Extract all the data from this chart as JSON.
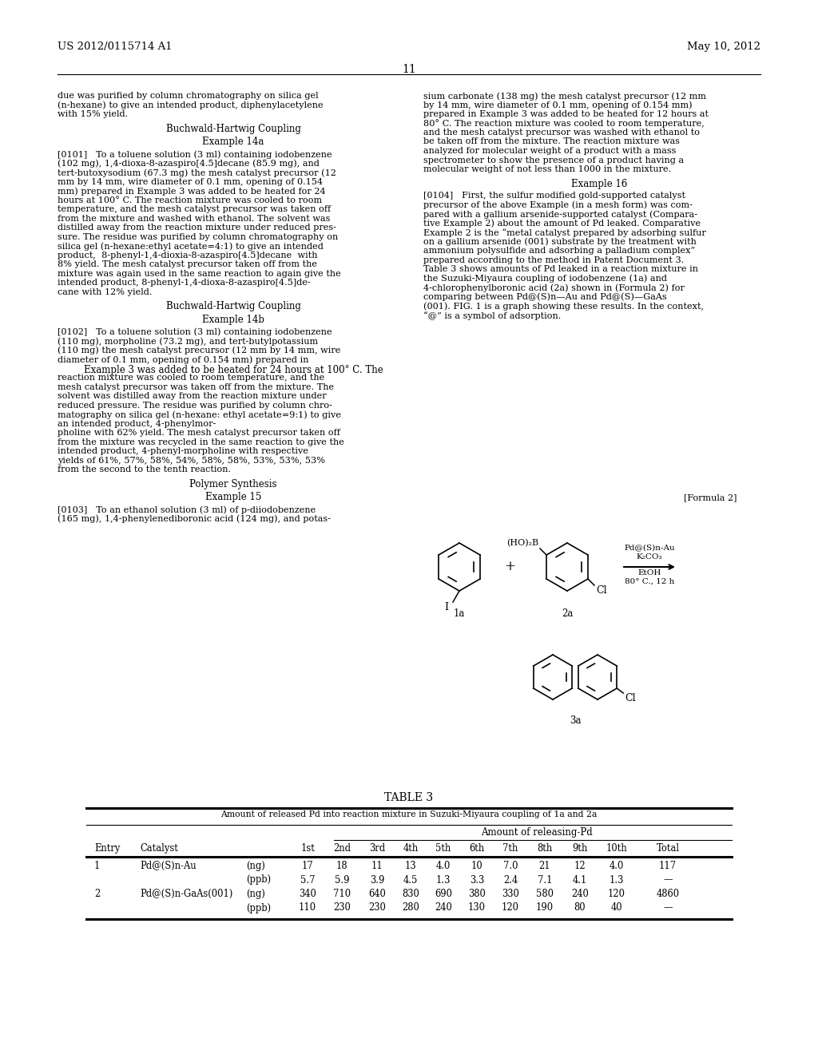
{
  "page_header_left": "US 2012/0115714 A1",
  "page_header_right": "May 10, 2012",
  "page_number": "11",
  "background_color": "#ffffff",
  "text_color": "#000000",
  "left_column_text": [
    "due was purified by column chromatography on silica gel",
    "(n-hexane) to give an intended product, diphenylacetylene",
    "with 15% yield.",
    "",
    "Buchwald-Hartwig Coupling",
    "",
    "Example 14a",
    "",
    "[0101]   To a toluene solution (3 ml) containing iodobenzene",
    "(102 mg), 1,4-dioxa-8-azaspiro[4.5]decane (85.9 mg), and",
    "tert-butoxysodium (67.3 mg) the mesh catalyst precursor (12",
    "mm by 14 mm, wire diameter of 0.1 mm, opening of 0.154",
    "mm) prepared in Example 3 was added to be heated for 24",
    "hours at 100° C. The reaction mixture was cooled to room",
    "temperature, and the mesh catalyst precursor was taken off",
    "from the mixture and washed with ethanol. The solvent was",
    "distilled away from the reaction mixture under reduced pres-",
    "sure. The residue was purified by column chromatography on",
    "silica gel (n-hexane:ethyl acetate=4:1) to give an intended",
    "product,  8-phenyl-1,4-dioxia-8-azaspiro[4.5]decane  with",
    "8% yield. The mesh catalyst precursor taken off from the",
    "mixture was again used in the same reaction to again give the",
    "intended product, 8-phenyl-1,4-dioxa-8-azaspiro[4.5]de-",
    "cane with 12% yield.",
    "",
    "Buchwald-Hartwig Coupling",
    "",
    "Example 14b",
    "",
    "[0102]   To a toluene solution (3 ml) containing iodobenzene",
    "(110 mg), morpholine (73.2 mg), and tert-butylpotassium",
    "(110 mg) the mesh catalyst precursor (12 mm by 14 mm, wire",
    "diameter of 0.1 mm, opening of 0.154 mm) prepared in",
    "Example 3 was added to be heated for 24 hours at 100° C. The",
    "reaction mixture was cooled to room temperature, and the",
    "mesh catalyst precursor was taken off from the mixture. The",
    "solvent was distilled away from the reaction mixture under",
    "reduced pressure. The residue was purified by column chro-",
    "matography on silica gel (n-hexane: ethyl acetate=9:1) to give",
    "an intended product, 4-phenylmor-",
    "pholine with 62% yield. The mesh catalyst precursor taken off",
    "from the mixture was recycled in the same reaction to give the",
    "intended product, 4-phenyl-morpholine with respective",
    "yields of 61%, 57%, 58%, 54%, 58%, 58%, 53%, 53%, 53%",
    "from the second to the tenth reaction.",
    "",
    "Polymer Synthesis",
    "",
    "Example 15",
    "",
    "[0103]   To an ethanol solution (3 ml) of p-diiodobenzene",
    "(165 mg), 1,4-phenylenediboronic acid (124 mg), and potas-"
  ],
  "right_column_text": [
    "sium carbonate (138 mg) the mesh catalyst precursor (12 mm",
    "by 14 mm, wire diameter of 0.1 mm, opening of 0.154 mm)",
    "prepared in Example 3 was added to be heated for 12 hours at",
    "80° C. The reaction mixture was cooled to room temperature,",
    "and the mesh catalyst precursor was washed with ethanol to",
    "be taken off from the mixture. The reaction mixture was",
    "analyzed for molecular weight of a product with a mass",
    "spectrometer to show the presence of a product having a",
    "molecular weight of not less than 1000 in the mixture.",
    "",
    "Example 16",
    "",
    "[0104]   First, the sulfur modified gold-supported catalyst",
    "precursor of the above Example (in a mesh form) was com-",
    "pared with a gallium arsenide-supported catalyst (Compara-",
    "tive Example 2) about the amount of Pd leaked. Comparative",
    "Example 2 is the “metal catalyst prepared by adsorbing sulfur",
    "on a gallium arsenide (001) substrate by the treatment with",
    "ammonium polysulfide and adsorbing a palladium complex”",
    "prepared according to the method in Patent Document 3.",
    "Table 3 shows amounts of Pd leaked in a reaction mixture in",
    "the Suzuki-Miyaura coupling of iodobenzene (1a) and",
    "4-chlorophenylboronic acid (2a) shown in (Formula 2) for",
    "comparing between Pd@(S)n—Au and Pd@(S)—GaAs",
    "(001). FIG. 1 is a graph showing these results. In the context,",
    "“@” is a symbol of adsorption."
  ],
  "formula_label": "[Formula 2]",
  "reaction_label_1a": "1a",
  "reaction_label_2a": "2a",
  "reaction_label_3a": "3a",
  "reaction_reagent_line1": "Pd@(S)n-Au",
  "reaction_reagent_line2": "K₂CO₃",
  "reaction_solvent_line1": "EtOH",
  "reaction_solvent_line2": "80° C., 12 h",
  "reaction_plus": "+",
  "reaction_boronic": "(HO)₂B",
  "reagent_1_substituent": "I",
  "reagent_2_substituent": "Cl",
  "product_substituent": "Cl",
  "table_title": "TABLE 3",
  "table_subtitle": "Amount of released Pd into reaction mixture in Suzuki-Miyaura coupling of 1a and 2a",
  "table_col_group": "Amount of releasing-Pd",
  "table_headers": [
    "Entry",
    "Catalyst",
    "",
    "1st",
    "2nd",
    "3rd",
    "4th",
    "5th",
    "6th",
    "7th",
    "8th",
    "9th",
    "10th",
    "Total"
  ],
  "table_rows": [
    [
      "1",
      "Pd@(S)n-Au",
      "(ng)",
      "17",
      "18",
      "11",
      "13",
      "4.0",
      "10",
      "7.0",
      "21",
      "12",
      "4.0",
      "117"
    ],
    [
      "",
      "",
      "(ppb)",
      "5.7",
      "5.9",
      "3.9",
      "4.5",
      "1.3",
      "3.3",
      "2.4",
      "7.1",
      "4.1",
      "1.3",
      "—"
    ],
    [
      "2",
      "Pd@(S)n-GaAs(001)",
      "(ng)",
      "340",
      "710",
      "640",
      "830",
      "690",
      "380",
      "330",
      "580",
      "240",
      "120",
      "4860"
    ],
    [
      "",
      "",
      "(ppb)",
      "110",
      "230",
      "230",
      "280",
      "240",
      "130",
      "120",
      "190",
      "80",
      "40",
      "—"
    ]
  ]
}
